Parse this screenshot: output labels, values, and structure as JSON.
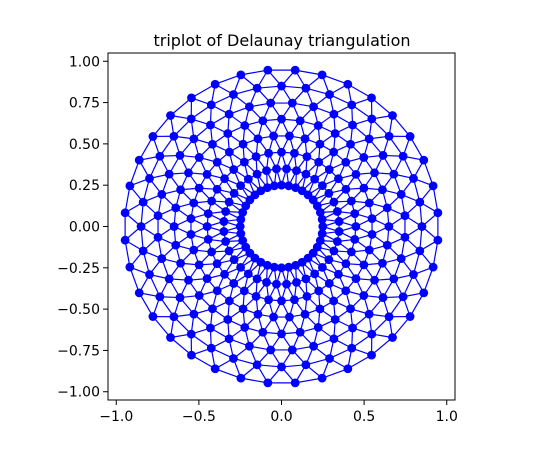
{
  "chart_data": {
    "type": "triplot",
    "title": "triplot of Delaunay triangulation",
    "xlabel": "",
    "ylabel": "",
    "xlim": [
      -1.05,
      1.05
    ],
    "ylim": [
      -1.05,
      1.05
    ],
    "x_ticks": [
      {
        "value": -1.0,
        "label": "−1.0"
      },
      {
        "value": -0.5,
        "label": "−0.5"
      },
      {
        "value": 0.0,
        "label": "0.0"
      },
      {
        "value": 0.5,
        "label": "0.5"
      },
      {
        "value": 1.0,
        "label": "1.0"
      }
    ],
    "y_ticks": [
      {
        "value": 1.0,
        "label": "1.00"
      },
      {
        "value": 0.75,
        "label": "0.75"
      },
      {
        "value": 0.5,
        "label": "0.50"
      },
      {
        "value": 0.25,
        "label": "0.25"
      },
      {
        "value": 0.0,
        "label": "0.00"
      },
      {
        "value": -0.25,
        "label": "−0.25"
      },
      {
        "value": -0.5,
        "label": "−0.50"
      },
      {
        "value": -0.75,
        "label": "−0.75"
      },
      {
        "value": -1.0,
        "label": "−1.00"
      }
    ],
    "grid": false,
    "aspect": "equal",
    "mesh": {
      "n_radii": 8,
      "n_angles": 36,
      "min_radius": 0.25,
      "max_radius": 0.95,
      "alternate_ring_rotation_deg": 5,
      "inner_hole": true
    },
    "colors": {
      "mesh": "#0000ff",
      "axes": "#000000",
      "background": "#ffffff"
    }
  }
}
